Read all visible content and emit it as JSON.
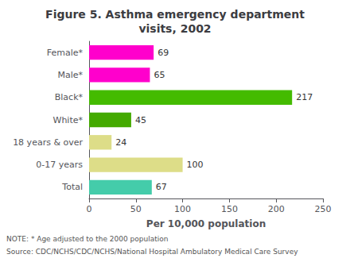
{
  "chart_data": {
    "type": "bar",
    "orientation": "horizontal",
    "title": "Figure 5. Asthma emergency department\nvisits, 2002",
    "categories": [
      "Female*",
      "Male*",
      "Black*",
      "White*",
      "18 years & over",
      "0-17 years",
      "Total"
    ],
    "values": [
      69,
      65,
      217,
      45,
      24,
      100,
      67
    ],
    "colors": [
      "#ff00cc",
      "#ff00cc",
      "#44bb00",
      "#44aa00",
      "#dddd88",
      "#dddd88",
      "#44ccaa"
    ],
    "xlabel": "Per 10,000 population",
    "xlim": [
      0,
      250
    ],
    "xticks": [
      0,
      50,
      100,
      150,
      200,
      250
    ],
    "data_labels": true,
    "grid": false,
    "annotations": [
      "NOTE: * Age adjusted to the 2000 population",
      "Source: CDC/NCHS/CDC/NCHS/National Hospital Ambulatory Medical Care Survey"
    ]
  }
}
